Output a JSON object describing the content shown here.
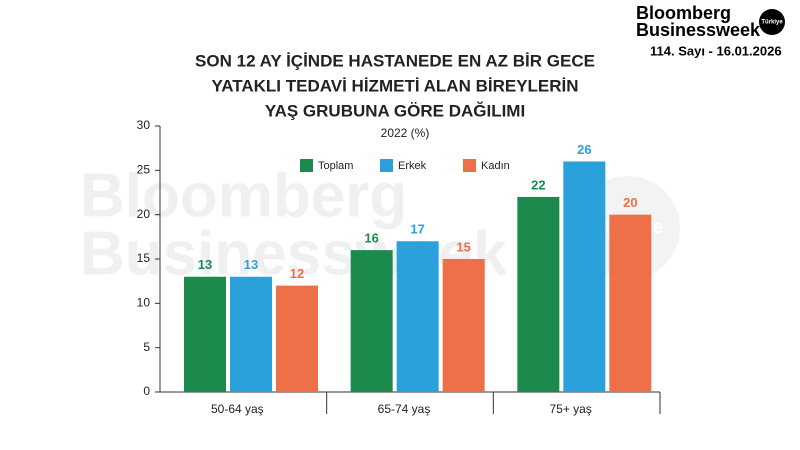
{
  "brand": {
    "name_line1": "Bloomberg",
    "name_line2": "Businessweek",
    "badge": "Türkiye",
    "issue": "114. Sayı - 16.01.2026"
  },
  "chart_data": {
    "type": "bar",
    "title": [
      "SON 12 AY İÇİNDE HASTANEDE EN AZ BİR GECE",
      "YATAKLI TEDAVİ HİZMETİ ALAN BİREYLERİN",
      "YAŞ GRUBUNA GÖRE DAĞILIMI"
    ],
    "subtitle": "2022 (%)",
    "categories": [
      "50-64 yaş",
      "65-74 yaş",
      "75+ yaş"
    ],
    "series": [
      {
        "name": "Toplam",
        "color": "#1b8a4c",
        "values": [
          13,
          16,
          22
        ]
      },
      {
        "name": "Erkek",
        "color": "#2ba1dc",
        "values": [
          13,
          17,
          26
        ]
      },
      {
        "name": "Kadın",
        "color": "#ee7048",
        "values": [
          12,
          15,
          20
        ]
      }
    ],
    "ylim": [
      0,
      30
    ],
    "yticks": [
      0,
      5,
      10,
      15,
      20,
      25,
      30
    ],
    "grid": false,
    "legend": "top"
  }
}
